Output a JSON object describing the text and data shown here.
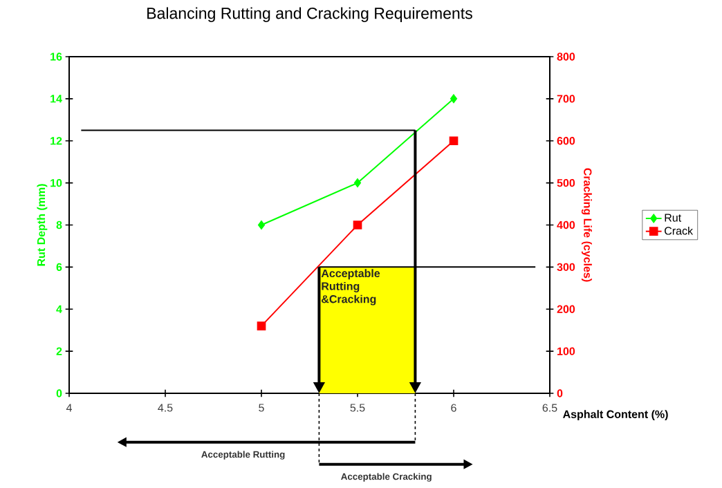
{
  "chart_data": {
    "type": "line",
    "title": "Balancing Rutting and Cracking Requirements",
    "xlabel": "Asphalt Content (%)",
    "ylabel": "Rut Depth (mm)",
    "y2label": "Cracking Life (cycles)",
    "x": [
      5,
      5.5,
      6
    ],
    "series": [
      {
        "name": "Rut",
        "color": "#00ff00",
        "values": [
          8,
          10,
          14
        ],
        "marker": "diamond"
      },
      {
        "name": "Crack",
        "color": "#ff0000",
        "values": [
          160,
          400,
          600
        ],
        "marker": "square",
        "axis": "y2"
      }
    ],
    "xlim": [
      4,
      6.5
    ],
    "xticks": [
      4,
      4.5,
      5,
      5.5,
      6,
      6.5
    ],
    "ylim": [
      0,
      16
    ],
    "yticks": [
      0,
      2,
      4,
      6,
      8,
      10,
      12,
      14,
      16
    ],
    "y2lim": [
      0,
      800
    ],
    "y2ticks": [
      0,
      100,
      200,
      300,
      400,
      500,
      600,
      700,
      800
    ],
    "ref_lines": [
      {
        "axis": "y",
        "value": 12.5
      },
      {
        "axis": "x",
        "value": 5.8
      },
      {
        "axis": "x",
        "value": 5.3
      },
      {
        "axis": "y2",
        "value": 300
      }
    ],
    "bands": [
      {
        "axis": "x",
        "from": 5.3,
        "to": 5.8,
        "label": "Acceptable Rutting &Cracking",
        "color": "#ffff00"
      }
    ],
    "annotations": [
      "Acceptable Rutting",
      "Acceptable Cracking"
    ],
    "legend": "right"
  }
}
